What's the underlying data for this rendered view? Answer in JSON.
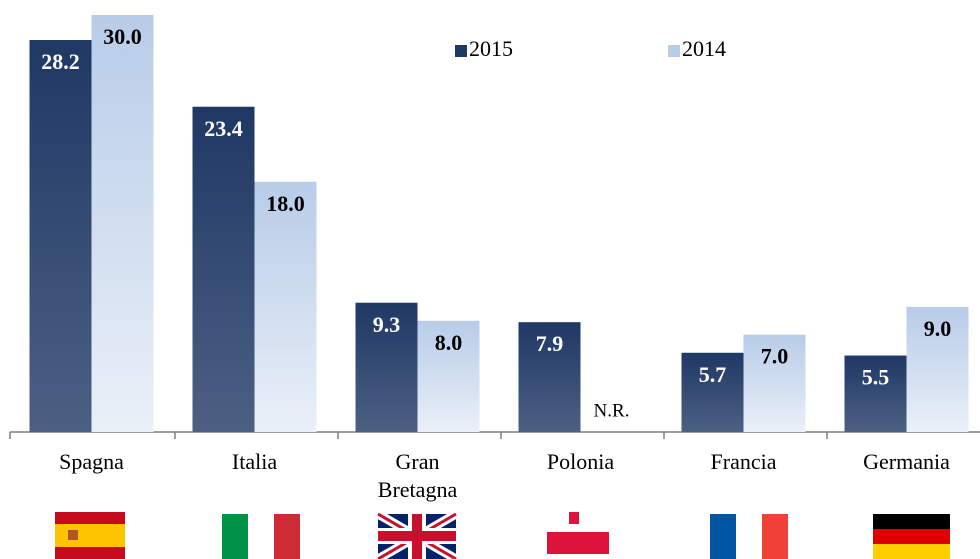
{
  "chart_data": {
    "type": "bar",
    "categories": [
      "Spagna",
      "Italia",
      "Gran Bretagna",
      "Polonia",
      "Francia",
      "Germania"
    ],
    "series": [
      {
        "name": "2015",
        "color": "#1f3864",
        "values": [
          28.2,
          23.4,
          9.3,
          7.9,
          5.7,
          5.5
        ],
        "value_labels": [
          "28.2",
          "23.4",
          "9.3",
          "7.9",
          "5.7",
          "5.5"
        ]
      },
      {
        "name": "2014",
        "color": "#b8cce8",
        "values": [
          30,
          18,
          8,
          null,
          7,
          9
        ],
        "value_labels": [
          "30.0",
          "18.0",
          "8.0",
          "N.R.",
          "7.0",
          "9.0"
        ]
      }
    ],
    "ylim": [
      0,
      30
    ],
    "legend": "top"
  }
}
